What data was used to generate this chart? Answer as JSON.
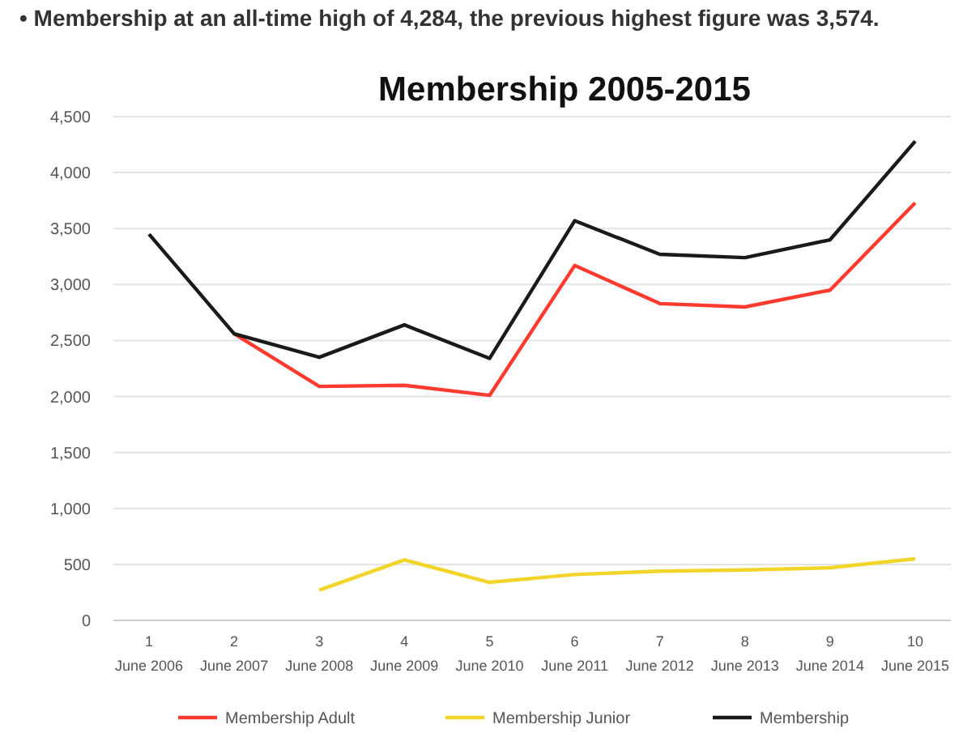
{
  "chart_data": {
    "type": "line",
    "title": "Membership 2005-2015",
    "annotations": [
      "• Membership at an all-time high of 4,284, the previous highest figure was 3,574."
    ],
    "categories": [
      "1\nJune 2006",
      "2\nJune 2007",
      "3\nJune 2008",
      "4\nJune 2009",
      "5\nJune 2010",
      "6\nJune 2011",
      "7\nJune 2012",
      "8\nJune 2013",
      "9\nJune 2014",
      "10\nJune 2015"
    ],
    "series": [
      {
        "name": "Membership Adult",
        "color": "#ff3b30",
        "values": [
          null,
          2560,
          2090,
          2100,
          2010,
          3170,
          2830,
          2800,
          2950,
          3730
        ]
      },
      {
        "name": "Membership Junior",
        "color": "#f2d52a",
        "values": [
          null,
          null,
          270,
          540,
          340,
          410,
          440,
          450,
          470,
          550
        ]
      },
      {
        "name": "Membership",
        "color": "#1a1a1a",
        "values": [
          3450,
          2560,
          2350,
          2640,
          2340,
          3570,
          3270,
          3240,
          3400,
          4280
        ]
      }
    ],
    "ylim": [
      0,
      4500
    ],
    "yticks": [
      {
        "value": 0,
        "label": "0"
      },
      {
        "value": 500,
        "label": "500"
      },
      {
        "value": 1000,
        "label": "1,000"
      },
      {
        "value": 1500,
        "label": "1,500"
      },
      {
        "value": 2000,
        "label": "2,000"
      },
      {
        "value": 2500,
        "label": "2,500"
      },
      {
        "value": 3000,
        "label": "3,000"
      },
      {
        "value": 3500,
        "label": "3,500"
      },
      {
        "value": 4000,
        "label": "4,000"
      },
      {
        "value": 4500,
        "label": "4,500"
      }
    ],
    "grid": "y",
    "legend": "bottom",
    "marker": "none",
    "line_style": "solid"
  }
}
